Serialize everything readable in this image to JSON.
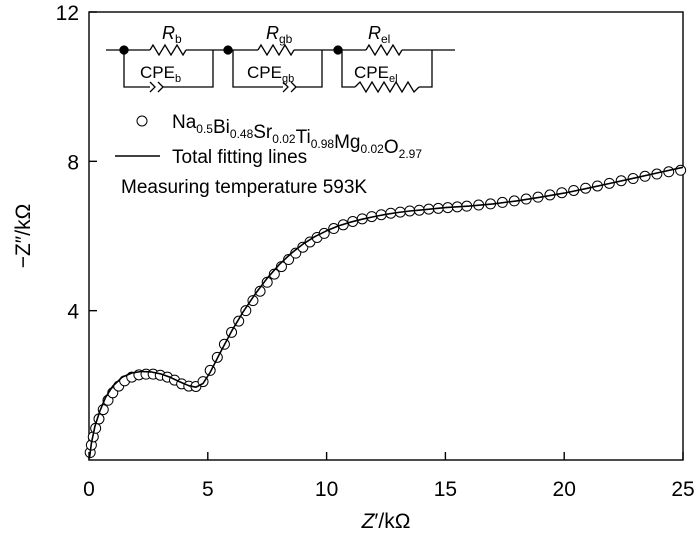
{
  "chart_data": {
    "type": "scatter",
    "title": "",
    "xlabel": {
      "main": "Z",
      "prime": "′",
      "unit": "/kΩ"
    },
    "ylabel": {
      "main": "−Z",
      "prime": "″",
      "unit": "/kΩ"
    },
    "xlim": [
      0,
      25
    ],
    "ylim": [
      0,
      12
    ],
    "xticks": [
      0,
      5,
      10,
      15,
      20,
      25
    ],
    "yticks": [
      4,
      8,
      12
    ],
    "grid": false,
    "legend_position": "top-left",
    "circuit": {
      "elements": [
        {
          "r_main": "R",
          "r_sub": "b",
          "cpe_main": "CPE",
          "cpe_sub": "b"
        },
        {
          "r_main": "R",
          "r_sub": "gb",
          "cpe_main": "CPE",
          "cpe_sub": "gb"
        },
        {
          "r_main": "R",
          "r_sub": "el",
          "cpe_main": "CPE",
          "cpe_sub": "el"
        }
      ]
    },
    "legend": {
      "marker_series": [
        [
          "Na",
          "0.5"
        ],
        [
          "Bi",
          "0.48"
        ],
        [
          "Sr",
          "0.02"
        ],
        [
          "Ti",
          "0.98"
        ],
        [
          "Mg",
          "0.02"
        ],
        [
          "O",
          "2.97"
        ]
      ],
      "line_series": "Total fitting lines",
      "note": "Measuring temperature 593K"
    },
    "series": [
      {
        "name": "Na0.5Bi0.48Sr0.02Ti0.98Mg0.02O2.97",
        "kind": "markers",
        "x": [
          0.05,
          0.1,
          0.18,
          0.28,
          0.42,
          0.6,
          0.8,
          1.0,
          1.25,
          1.5,
          1.8,
          2.1,
          2.4,
          2.7,
          3.0,
          3.3,
          3.6,
          3.9,
          4.2,
          4.5,
          4.8,
          5.1,
          5.4,
          5.7,
          6.0,
          6.3,
          6.6,
          6.9,
          7.2,
          7.5,
          7.8,
          8.1,
          8.4,
          8.7,
          9.0,
          9.3,
          9.6,
          9.9,
          10.3,
          10.7,
          11.1,
          11.5,
          11.9,
          12.3,
          12.7,
          13.1,
          13.5,
          13.9,
          14.3,
          14.7,
          15.1,
          15.5,
          15.9,
          16.4,
          16.9,
          17.4,
          17.9,
          18.4,
          18.9,
          19.4,
          19.9,
          20.4,
          20.9,
          21.4,
          21.9,
          22.4,
          22.9,
          23.4,
          23.9,
          24.4,
          24.9
        ],
        "y": [
          0.2,
          0.4,
          0.62,
          0.85,
          1.1,
          1.35,
          1.6,
          1.8,
          1.98,
          2.12,
          2.22,
          2.28,
          2.3,
          2.3,
          2.27,
          2.22,
          2.14,
          2.04,
          1.98,
          1.97,
          2.1,
          2.4,
          2.75,
          3.1,
          3.42,
          3.72,
          4.0,
          4.27,
          4.52,
          4.76,
          4.98,
          5.18,
          5.37,
          5.54,
          5.7,
          5.84,
          5.96,
          6.07,
          6.2,
          6.3,
          6.39,
          6.46,
          6.52,
          6.57,
          6.61,
          6.64,
          6.67,
          6.69,
          6.72,
          6.74,
          6.76,
          6.78,
          6.8,
          6.83,
          6.86,
          6.9,
          6.94,
          6.99,
          7.04,
          7.1,
          7.16,
          7.22,
          7.28,
          7.34,
          7.41,
          7.48,
          7.54,
          7.6,
          7.66,
          7.72,
          7.76
        ]
      },
      {
        "name": "Total fitting lines",
        "kind": "line",
        "x": [
          0.02,
          0.1,
          0.25,
          0.45,
          0.7,
          1.0,
          1.4,
          1.8,
          2.2,
          2.6,
          3.0,
          3.4,
          3.8,
          4.2,
          4.5,
          4.8,
          5.1,
          5.5,
          6.0,
          6.5,
          7.0,
          7.5,
          8.0,
          8.5,
          9.0,
          9.5,
          10.0,
          10.5,
          11.0,
          11.5,
          12.0,
          12.5,
          13.0,
          13.5,
          14.0,
          15.0,
          16.0,
          17.0,
          18.0,
          19.0,
          20.0,
          21.0,
          22.0,
          23.0,
          24.0,
          25.0
        ],
        "y": [
          0.05,
          0.45,
          0.9,
          1.3,
          1.68,
          1.98,
          2.22,
          2.33,
          2.37,
          2.36,
          2.31,
          2.22,
          2.1,
          1.99,
          1.95,
          2.05,
          2.35,
          2.85,
          3.45,
          3.98,
          4.45,
          4.87,
          5.23,
          5.53,
          5.78,
          5.98,
          6.14,
          6.27,
          6.37,
          6.45,
          6.52,
          6.58,
          6.63,
          6.67,
          6.7,
          6.76,
          6.8,
          6.86,
          6.94,
          7.04,
          7.15,
          7.28,
          7.42,
          7.56,
          7.7,
          7.84
        ]
      }
    ]
  }
}
